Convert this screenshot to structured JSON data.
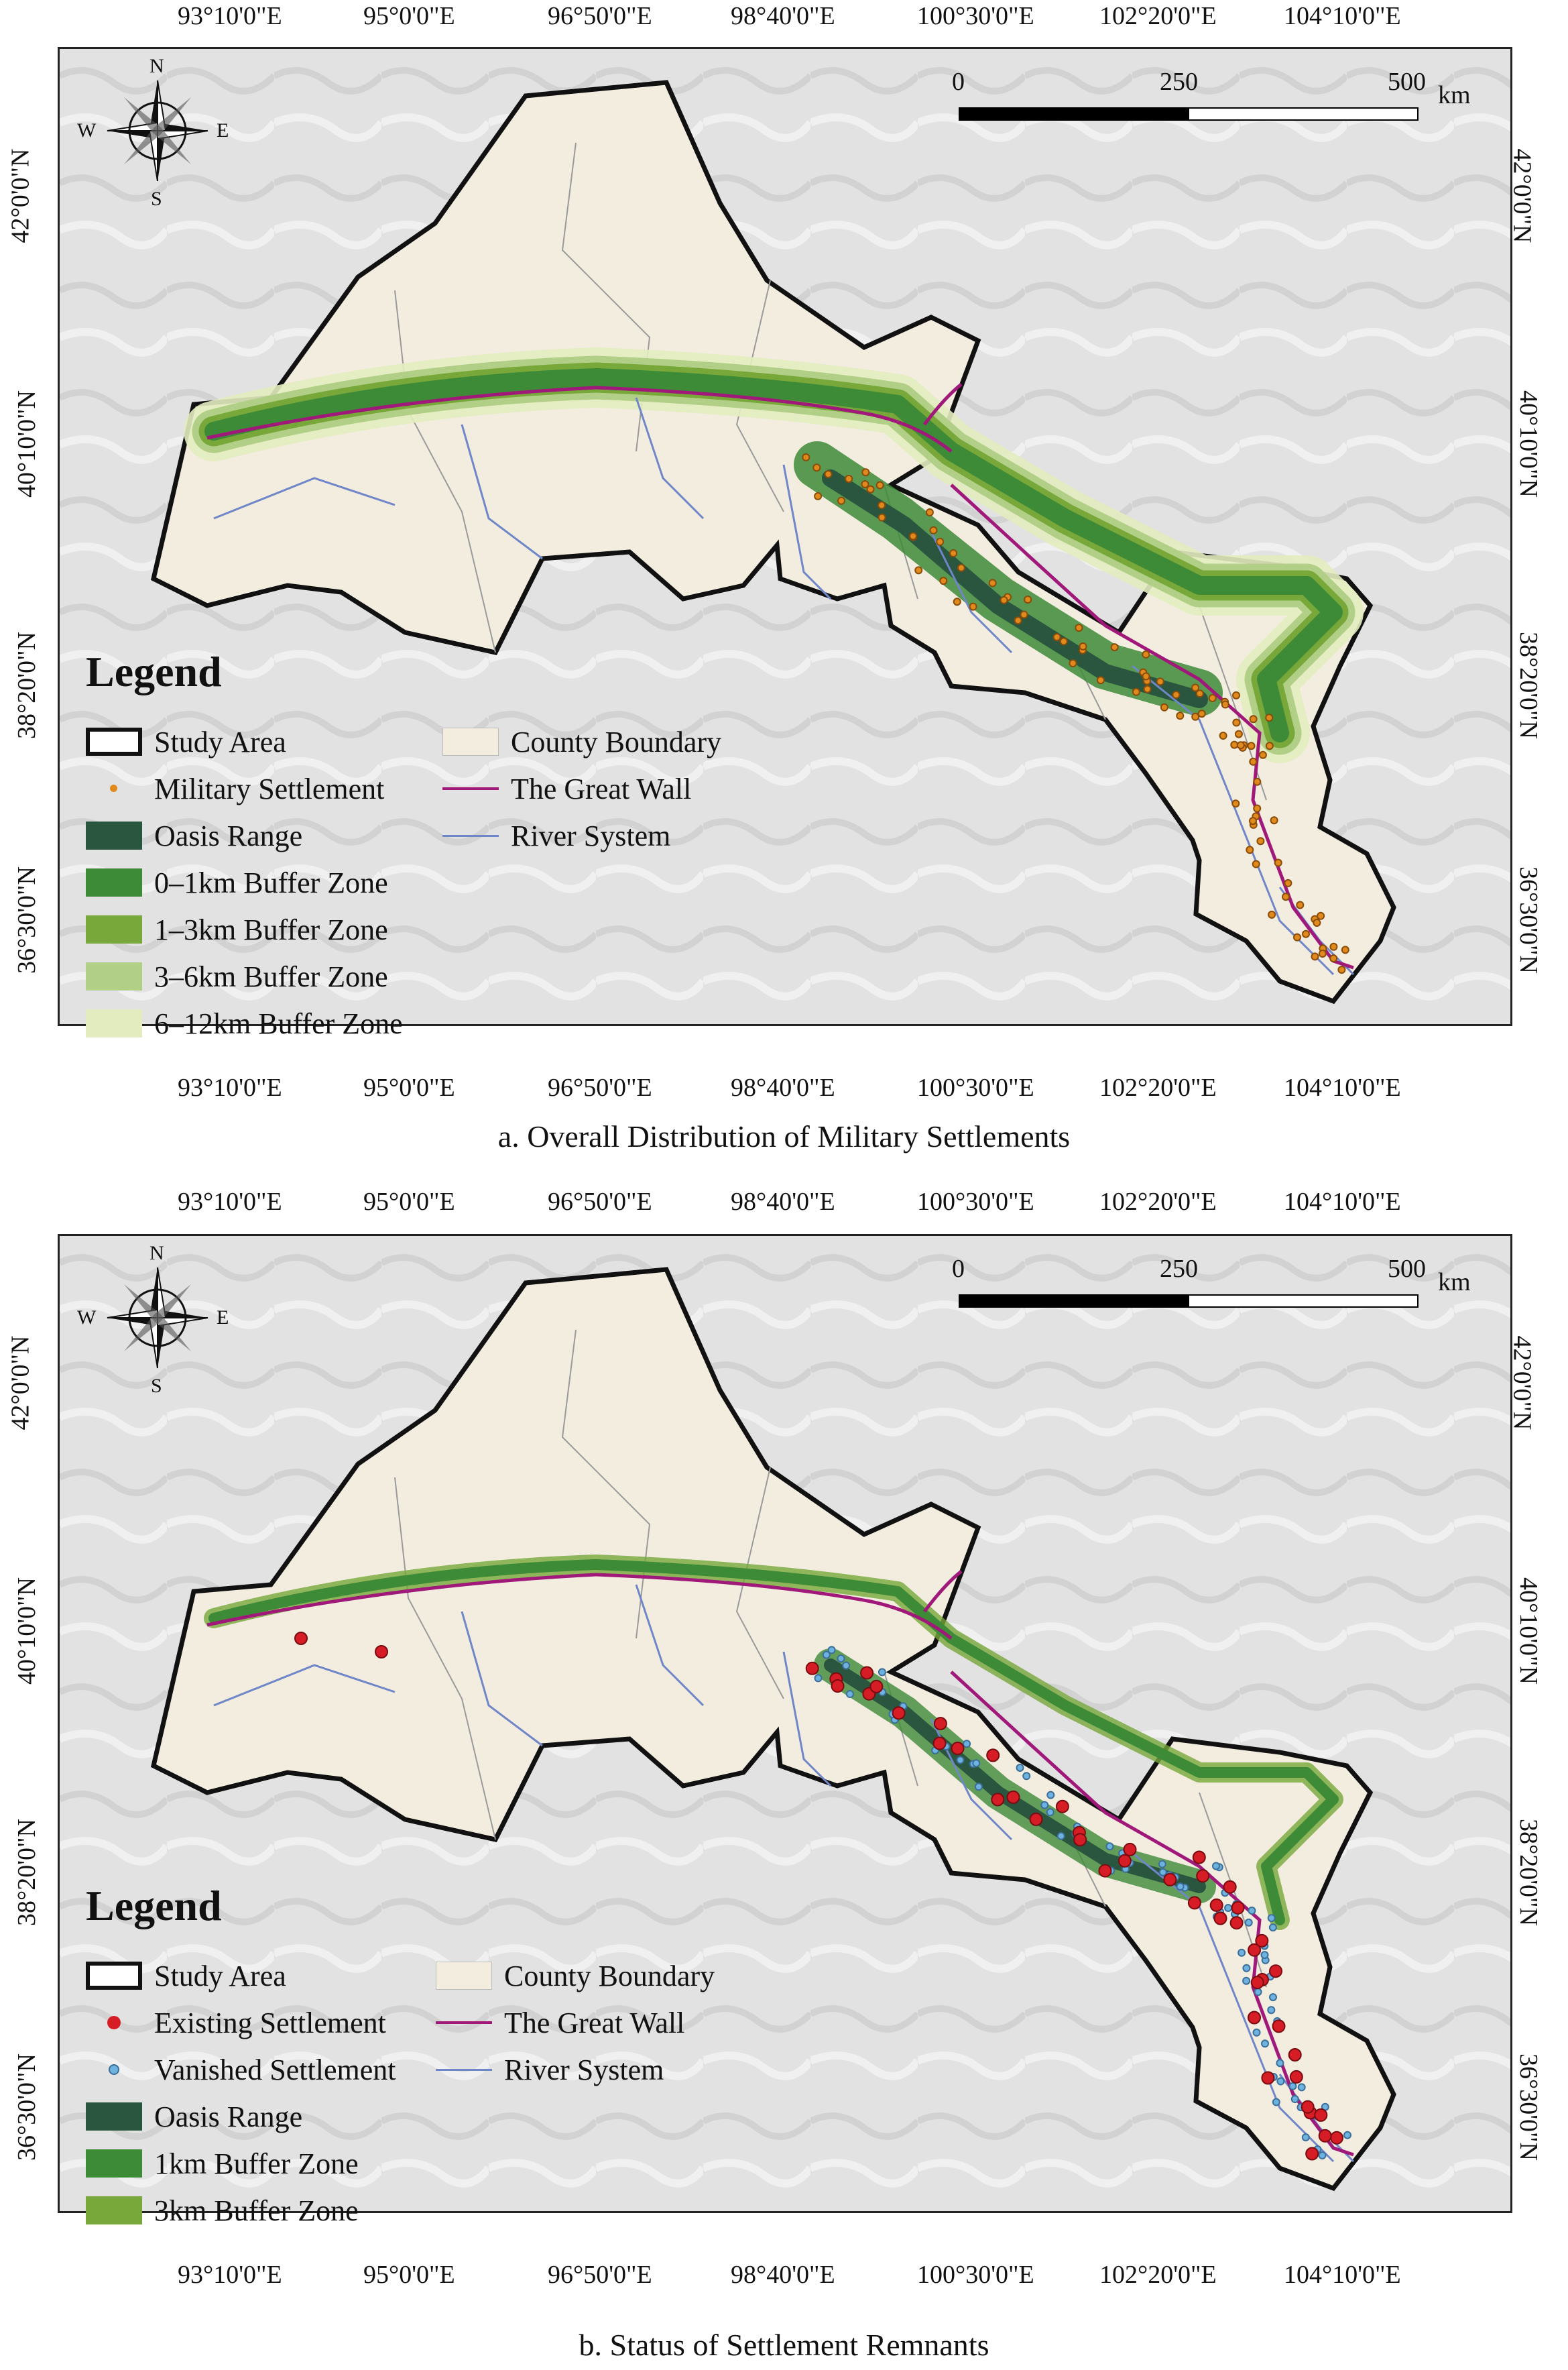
{
  "lon_ticks": [
    "93°10'0\"E",
    "95°0'0\"E",
    "96°50'0\"E",
    "98°40'0\"E",
    "100°30'0\"E",
    "102°20'0\"E",
    "104°10'0\"E"
  ],
  "lat_ticks": [
    "42°0'0\"N",
    "40°10'0\"N",
    "38°20'0\"N",
    "36°30'0\"N"
  ],
  "compass": {
    "n": "N",
    "s": "S",
    "e": "E",
    "w": "W"
  },
  "scale_bar": {
    "labels": [
      "0",
      "250",
      "500"
    ],
    "unit": "km"
  },
  "colors": {
    "study_area": "#111111",
    "county_fill": "#f3ede0",
    "great_wall": "#a0187a",
    "river": "#6f86c8",
    "oasis": "#2a5640",
    "buffer_1": "#3d8a37",
    "buffer_1_3": "#77a839",
    "buffer_3_6": "#b1cf86",
    "buffer_6_12": "#e3ecbf",
    "military": "#e08a1e",
    "existing": "#d61d25",
    "vanished": "#6eb2df",
    "hillshade": "#e4e4e4"
  },
  "panel_a": {
    "caption": "a. Overall Distribution of Military Settlements",
    "legend_title": "Legend",
    "legend": [
      {
        "key": "study_area",
        "label": "Study Area"
      },
      {
        "key": "military",
        "label": "Military Settlement"
      },
      {
        "key": "oasis",
        "label": "Oasis Range"
      },
      {
        "key": "buffer_1",
        "label": "0–1km Buffer Zone"
      },
      {
        "key": "buffer_1_3",
        "label": "1–3km Buffer Zone"
      },
      {
        "key": "buffer_3_6",
        "label": "3–6km Buffer Zone"
      },
      {
        "key": "buffer_6_12",
        "label": "6–12km Buffer Zone"
      },
      {
        "key": "county",
        "label": "County Boundary"
      },
      {
        "key": "great_wall",
        "label": "The Great Wall"
      },
      {
        "key": "river",
        "label": "River System"
      }
    ]
  },
  "panel_b": {
    "caption": "b. Status of Settlement Remnants",
    "legend_title": "Legend",
    "legend": [
      {
        "key": "study_area",
        "label": "Study Area"
      },
      {
        "key": "existing",
        "label": "Existing Settlement"
      },
      {
        "key": "vanished",
        "label": "Vanished Settlement"
      },
      {
        "key": "oasis",
        "label": "Oasis Range"
      },
      {
        "key": "buffer_1",
        "label": "1km Buffer Zone"
      },
      {
        "key": "buffer_1_3",
        "label": "3km Buffer Zone"
      },
      {
        "key": "county",
        "label": "County Boundary"
      },
      {
        "key": "great_wall",
        "label": "The Great Wall"
      },
      {
        "key": "river",
        "label": "River System"
      }
    ]
  }
}
